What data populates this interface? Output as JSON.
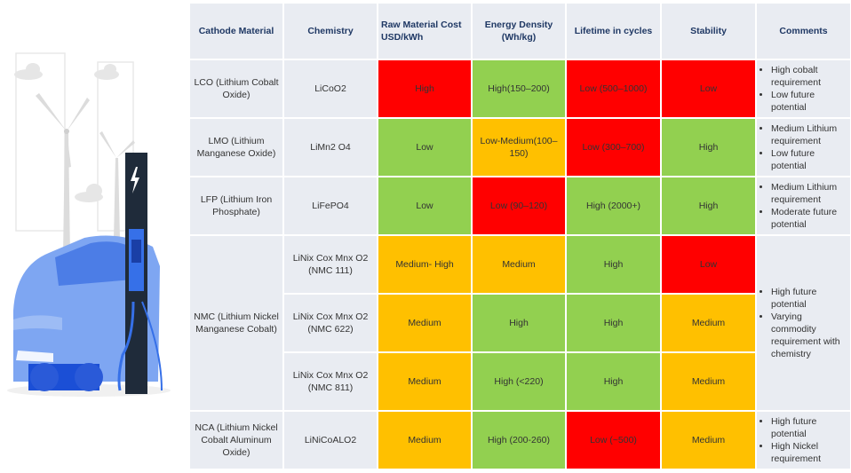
{
  "headers": {
    "cathode": "Cathode Material",
    "chemistry": "Chemistry",
    "cost": "Raw Material Cost USD/kWh",
    "energy": "Energy Density (Wh/kg)",
    "lifetime": "Lifetime in cycles",
    "stability": "Stability",
    "comments": "Comments"
  },
  "colors": {
    "red": "#ff0000",
    "green": "#92d050",
    "amber": "#ffc000",
    "neutral": "#e9ecf2",
    "header_text": "#1f3864"
  },
  "rows": {
    "lco": {
      "cathode": "LCO (Lithium Cobalt Oxide)",
      "chemistry": "LiCoO2",
      "cost": "High",
      "energy": "High(150–200)",
      "lifetime": "Low (500–1000)",
      "stability": "Low",
      "comments": [
        "High cobalt requirement",
        "Low future potential"
      ]
    },
    "lmo": {
      "cathode": "LMO (Lithium Manganese Oxide)",
      "chemistry": "LiMn2 O4",
      "cost": "Low",
      "energy": "Low-Medium(100–150)",
      "lifetime": "Low (300–700)",
      "stability": "High",
      "comments": [
        "Medium Lithium requirement",
        "Low future potential"
      ]
    },
    "lfp": {
      "cathode": "LFP (Lithium Iron Phosphate)",
      "chemistry": "LiFePO4",
      "cost": "Low",
      "energy": "Low (90–120)",
      "lifetime": "High (2000+)",
      "stability": "High",
      "comments": [
        "Medium Lithium requirement",
        "Moderate future potential"
      ]
    },
    "nmc": {
      "cathode": "NMC (Lithium Nickel Manganese Cobalt)",
      "comments": [
        "High future potential",
        "Varying commodity requirement with chemistry"
      ],
      "sub": [
        {
          "chemistry": "LiNix Cox Mnx O2 (NMC 111)",
          "cost": "Medium- High",
          "energy": "Medium",
          "lifetime": "High",
          "stability": "Low"
        },
        {
          "chemistry": "LiNix Cox Mnx O2 (NMC 622)",
          "cost": "Medium",
          "energy": "High",
          "lifetime": "High",
          "stability": "Medium"
        },
        {
          "chemistry": "LiNix Cox Mnx O2 (NMC 811)",
          "cost": "Medium",
          "energy": "High (<220)",
          "lifetime": "High",
          "stability": "Medium"
        }
      ]
    },
    "nca": {
      "cathode": "NCA (Lithium Nickel Cobalt Aluminum Oxide)",
      "chemistry": "LiNiCoALO2",
      "cost": "Medium",
      "energy": "High (200-260)",
      "lifetime": "Low (~500)",
      "stability": "Medium",
      "comments": [
        "High future potential",
        "High Nickel requirement"
      ]
    }
  }
}
